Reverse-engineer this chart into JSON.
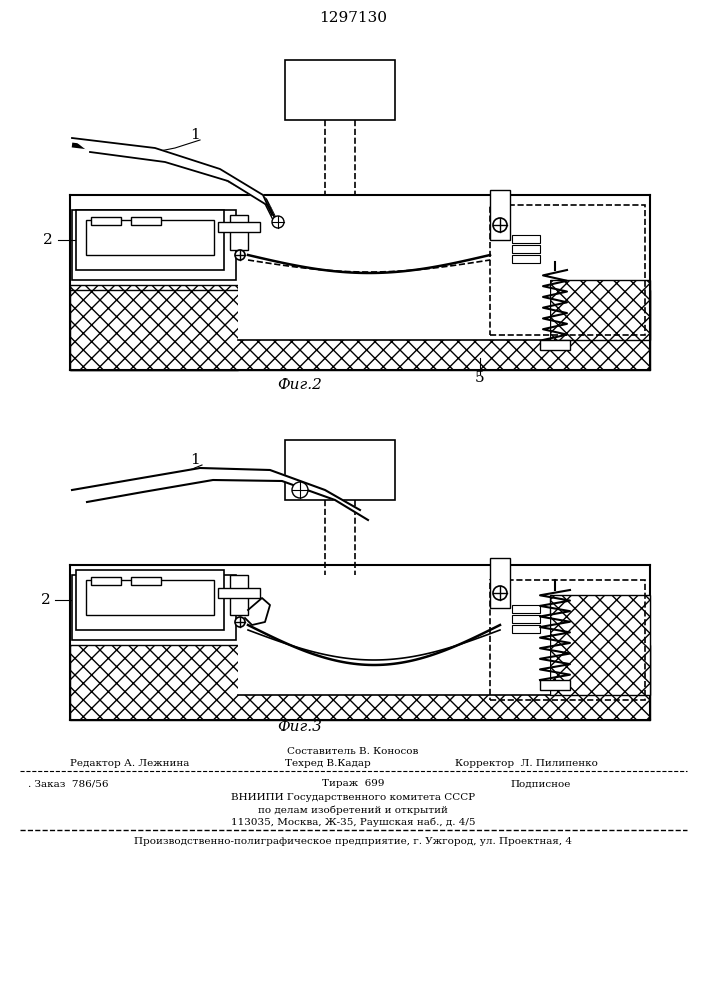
{
  "title_number": "1297130",
  "fig2_label": "Фиг.2",
  "fig3_label": "Фиг.3",
  "label1": "1",
  "label2_fig2": "2",
  "label2_fig3": "2",
  "label5": "5",
  "footer_line0_center": "Составитель В. Коносов",
  "footer_line1_left": "Редактор А. Лежнина",
  "footer_line1_center": "Техред В.Кадар",
  "footer_line1_right": "Корректор  Л. Пилипенко",
  "footer_line2_left": ". Заказ  786/56",
  "footer_line2_center": "Тираж  699",
  "footer_line2_right": "Подписное",
  "footer_line3_center": "ВНИИПИ Государственного комитета СССР",
  "footer_line4_center": "по делам изобретений и открытий",
  "footer_line5_center": "113035, Москва, Ж-35, Раушская наб., д. 4/5",
  "footer_line6": "Производственно-полиграфическое предприятие, г. Ужгород, ул. Проектная, 4",
  "bg_color": "#ffffff",
  "drawing_color": "#000000"
}
